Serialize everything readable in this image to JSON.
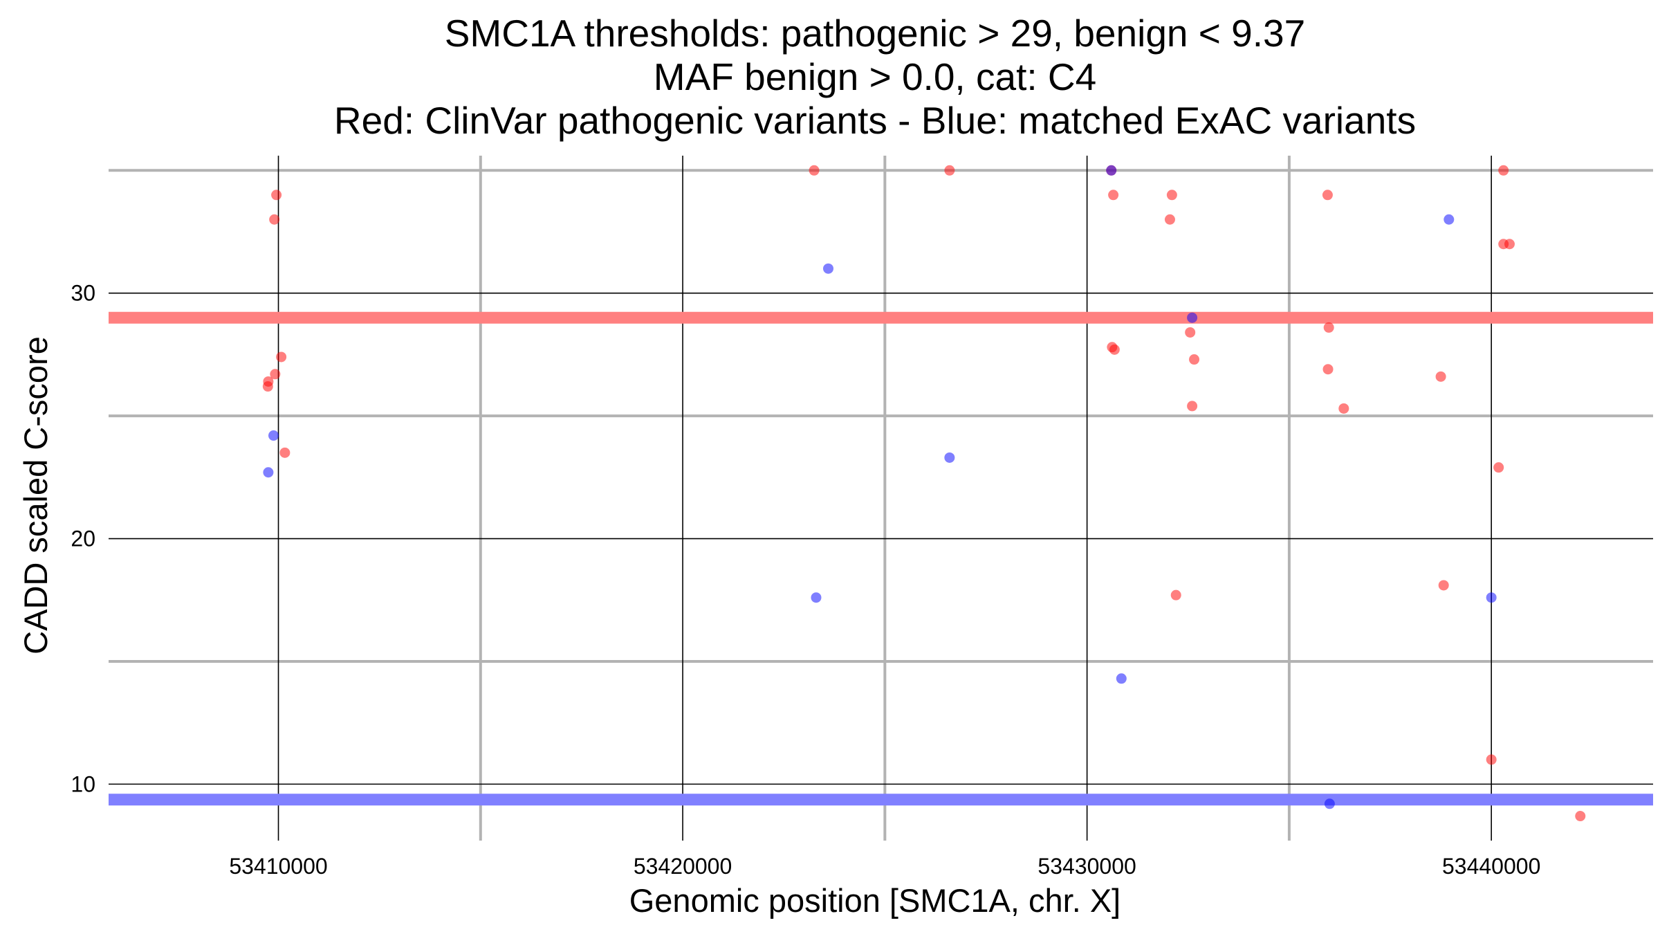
{
  "chart_data": {
    "type": "scatter",
    "title_lines": [
      "SMC1A thresholds: pathogenic > 29, benign < 9.37",
      "MAF benign > 0.0, cat: C4",
      "Red: ClinVar pathogenic variants - Blue: matched ExAC variants"
    ],
    "xlabel": "Genomic position [SMC1A, chr. X]",
    "ylabel": "CADD scaled C-score",
    "xlim": [
      53405800,
      53444000
    ],
    "ylim": [
      7.7,
      35.6
    ],
    "x_ticks": [
      53410000,
      53420000,
      53430000,
      53440000
    ],
    "x_tick_labels": [
      "53410000",
      "53420000",
      "53430000",
      "53440000"
    ],
    "x_minor_gridlines": [
      53415000,
      53425000,
      53435000
    ],
    "y_ticks": [
      10,
      20,
      30
    ],
    "y_tick_labels": [
      "10",
      "20",
      "30"
    ],
    "y_minor_gridlines": [
      15,
      25,
      35
    ],
    "grid": true,
    "thresholds": [
      {
        "name": "pathogenic",
        "value": 29,
        "color": "#ff8080"
      },
      {
        "name": "benign",
        "value": 9.37,
        "color": "#8080ff"
      }
    ],
    "series": [
      {
        "key": "clinvar",
        "color": "#ff0000",
        "points": [
          [
            53409950,
            34
          ],
          [
            53409900,
            33
          ],
          [
            53409750,
            26.4
          ],
          [
            53409740,
            26.2
          ],
          [
            53409920,
            26.7
          ],
          [
            53410070,
            27.4
          ],
          [
            53410160,
            23.5
          ],
          [
            53423250,
            35
          ],
          [
            53426600,
            35
          ],
          [
            53430600,
            35
          ],
          [
            53430650,
            34
          ],
          [
            53432100,
            34
          ],
          [
            53432050,
            33
          ],
          [
            53430620,
            27.8
          ],
          [
            53430680,
            27.7
          ],
          [
            53432550,
            28.4
          ],
          [
            53432650,
            27.3
          ],
          [
            53432600,
            25.4
          ],
          [
            53432200,
            17.7
          ],
          [
            53435950,
            34
          ],
          [
            53435980,
            28.6
          ],
          [
            53435960,
            26.9
          ],
          [
            53436350,
            25.3
          ],
          [
            53440300,
            35
          ],
          [
            53440300,
            32
          ],
          [
            53440450,
            32
          ],
          [
            53438750,
            26.6
          ],
          [
            53440180,
            22.9
          ],
          [
            53438820,
            18.1
          ],
          [
            53440000,
            11
          ],
          [
            53442200,
            8.7
          ]
        ]
      },
      {
        "key": "exac",
        "color": "#0000ff",
        "points": [
          [
            53409750,
            22.7
          ],
          [
            53409880,
            24.2
          ],
          [
            53423600,
            31
          ],
          [
            53426600,
            23.3
          ],
          [
            53423300,
            17.6
          ],
          [
            53430600,
            35
          ],
          [
            53432600,
            29
          ],
          [
            53430850,
            14.3
          ],
          [
            53438950,
            33
          ],
          [
            53440000,
            17.6
          ],
          [
            53436000,
            9.2
          ]
        ]
      }
    ]
  }
}
